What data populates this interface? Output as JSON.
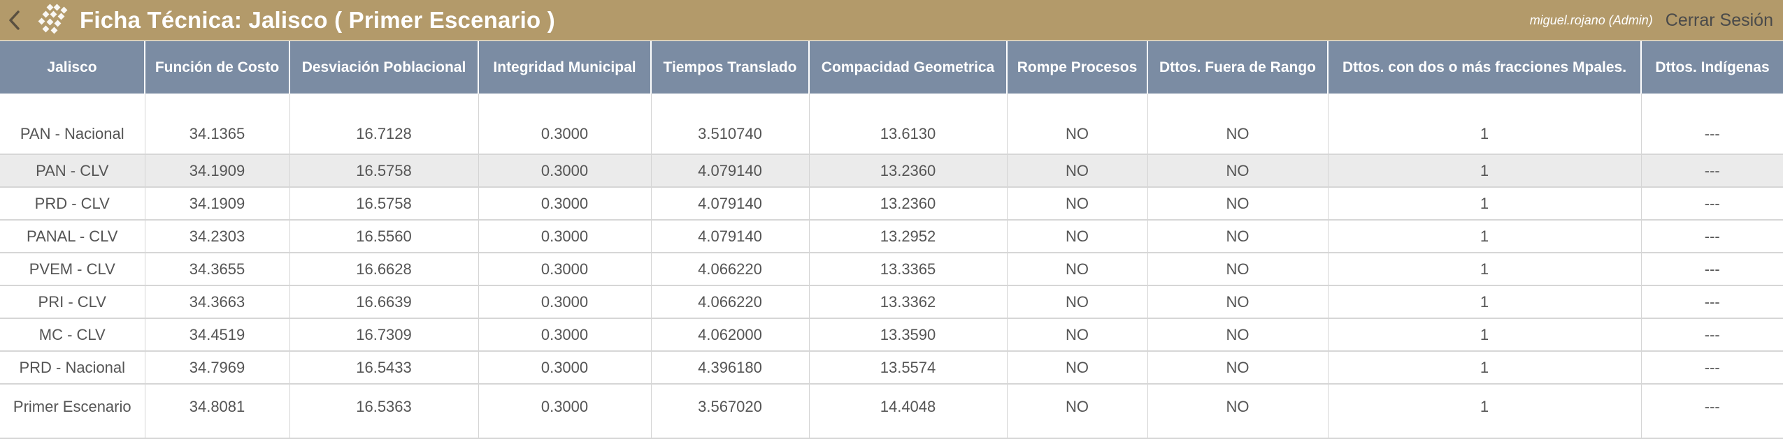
{
  "header": {
    "title": "Ficha Técnica: Jalisco ( Primer Escenario )",
    "user": "miguel.rojano (Admin)",
    "logout_label": "Cerrar Sesión"
  },
  "colors": {
    "topbar": "#b39a6a",
    "table_header": "#7b8ca3",
    "row_alt": "#ebebeb"
  },
  "table": {
    "columns": [
      "Jalisco",
      "Función de Costo",
      "Desviación Poblacional",
      "Integridad Municipal",
      "Tiempos Translado",
      "Compacidad Geometrica",
      "Rompe Procesos",
      "Dttos. Fuera de Rango",
      "Dttos. con dos o más fracciones Mpales.",
      "Dttos. Indígenas"
    ],
    "rows": [
      [
        "PAN - Nacional",
        "34.1365",
        "16.7128",
        "0.3000",
        "3.510740",
        "13.6130",
        "NO",
        "NO",
        "1",
        "---"
      ],
      [
        "PAN - CLV",
        "34.1909",
        "16.5758",
        "0.3000",
        "4.079140",
        "13.2360",
        "NO",
        "NO",
        "1",
        "---"
      ],
      [
        "PRD - CLV",
        "34.1909",
        "16.5758",
        "0.3000",
        "4.079140",
        "13.2360",
        "NO",
        "NO",
        "1",
        "---"
      ],
      [
        "PANAL - CLV",
        "34.2303",
        "16.5560",
        "0.3000",
        "4.079140",
        "13.2952",
        "NO",
        "NO",
        "1",
        "---"
      ],
      [
        "PVEM - CLV",
        "34.3655",
        "16.6628",
        "0.3000",
        "4.066220",
        "13.3365",
        "NO",
        "NO",
        "1",
        "---"
      ],
      [
        "PRI - CLV",
        "34.3663",
        "16.6639",
        "0.3000",
        "4.066220",
        "13.3362",
        "NO",
        "NO",
        "1",
        "---"
      ],
      [
        "MC - CLV",
        "34.4519",
        "16.7309",
        "0.3000",
        "4.062000",
        "13.3590",
        "NO",
        "NO",
        "1",
        "---"
      ],
      [
        "PRD - Nacional",
        "34.7969",
        "16.5433",
        "0.3000",
        "4.396180",
        "13.5574",
        "NO",
        "NO",
        "1",
        "---"
      ],
      [
        "Primer Escenario",
        "34.8081",
        "16.5363",
        "0.3000",
        "3.567020",
        "14.4048",
        "NO",
        "NO",
        "1",
        "---"
      ]
    ]
  }
}
